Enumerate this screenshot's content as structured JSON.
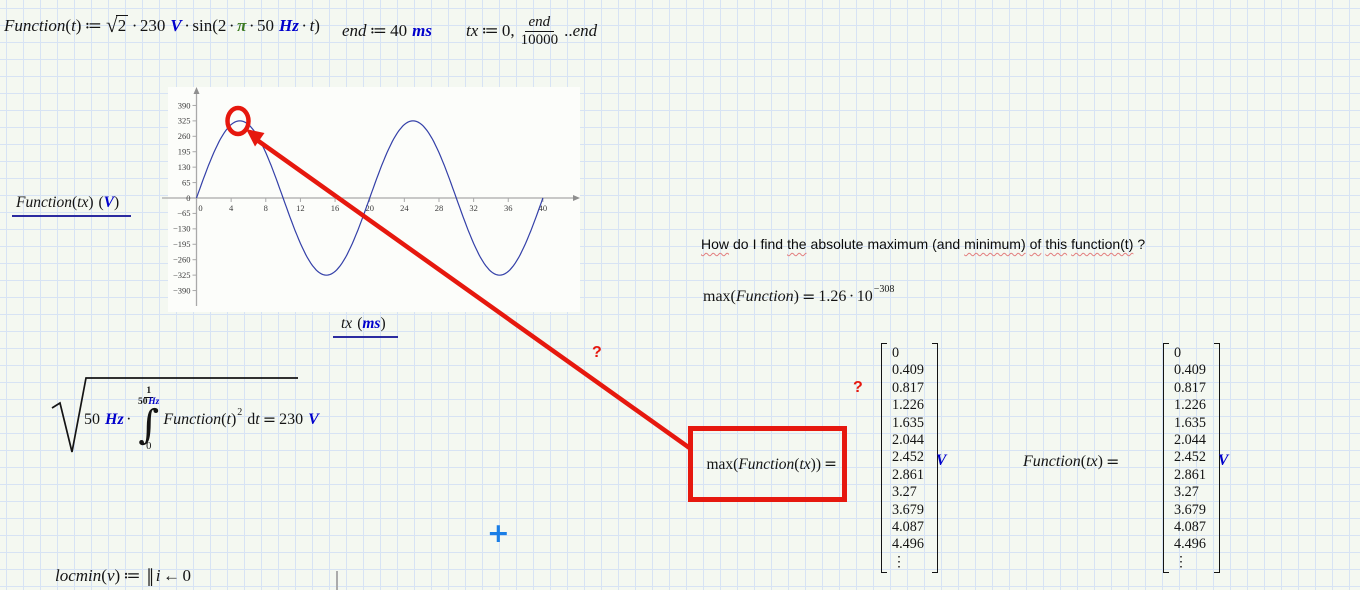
{
  "colors": {
    "unit": "#0000cc",
    "pi": "#3c7a22",
    "red": "#e6180e",
    "label_underline": "#2b2ba0",
    "curve": "#3440a8",
    "axis": "#a9a9a9",
    "crosshair": "#1a7ee6"
  },
  "sym": {
    "assign": "≔",
    "dot": "·",
    "open": "(",
    "close": ")",
    "eq": "=",
    "sqrt": "√",
    "comma": ",",
    "range_dots": "..",
    "d": "d",
    "arrow": "←",
    "dbar": "‖",
    "vdots": "⋮"
  },
  "equations": {
    "definition": {
      "name": "Function",
      "arg": "t",
      "sqrt_of": "2",
      "coef": "230",
      "unit": "V",
      "func": "sin",
      "two": "2",
      "pi": "π",
      "freq": "50",
      "freq_unit": "Hz",
      "var": "t"
    },
    "end_def": {
      "name": "end",
      "value": "40",
      "unit": "ms"
    },
    "range_def": {
      "name": "tx",
      "start": "0",
      "num": "end",
      "den": "10000",
      "end": "end"
    },
    "rms": {
      "coef": "50",
      "coef_unit": "Hz",
      "lim_num": "1",
      "lim_den": "50",
      "lim_den_unit": "Hz",
      "lower": "0",
      "fn": "Function",
      "arg": "t",
      "power": "2",
      "dvar": "t",
      "value": "230",
      "unit": "V"
    },
    "max_scalar": {
      "op": "max",
      "arg": "Function",
      "mantissa": "1.26",
      "base": "10",
      "exponent": "−308"
    },
    "max_vector": {
      "op": "max",
      "fn": "Function",
      "arg": "tx"
    },
    "vector_eval": {
      "fn": "Function",
      "arg": "tx"
    },
    "locmin": {
      "name": "locmin",
      "arg": "v",
      "var": "i",
      "value": "0"
    }
  },
  "question": {
    "words": [
      {
        "w": "How",
        "u": "sq"
      },
      {
        "w": "do",
        "u": ""
      },
      {
        "w": "I",
        "u": ""
      },
      {
        "w": "find",
        "u": ""
      },
      {
        "w": "the",
        "u": "sq"
      },
      {
        "w": "absolute",
        "u": ""
      },
      {
        "w": "maximum",
        "u": ""
      },
      {
        "w": "(and",
        "u": ""
      },
      {
        "w": "minimum)",
        "u": "sq"
      },
      {
        "w": "of",
        "u": "sq"
      },
      {
        "w": "this",
        "u": "sq"
      },
      {
        "w": "function(t)",
        "u": "sq"
      },
      {
        "w": "?",
        "u": ""
      }
    ]
  },
  "results": {
    "vector_values": [
      "0",
      "0.409",
      "0.817",
      "1.226",
      "1.635",
      "2.044",
      "2.452",
      "2.861",
      "3.27",
      "3.679",
      "4.087",
      "4.496",
      "⋮"
    ],
    "unit": "V"
  },
  "labels": {
    "y_axis": {
      "fn": "Function",
      "arg": "tx",
      "unit": "V"
    },
    "x_axis": {
      "var": "tx",
      "unit": "ms"
    }
  },
  "annotations": {
    "q1": "?",
    "q2": "?",
    "plus": "+"
  },
  "chart_data": {
    "type": "line",
    "title": "",
    "xlabel": "tx (ms)",
    "ylabel": "Function(tx) (V)",
    "x_ticks": [
      0,
      4,
      8,
      12,
      16,
      20,
      24,
      28,
      32,
      36,
      40
    ],
    "y_ticks": [
      390,
      325,
      260,
      195,
      130,
      65,
      0,
      -65,
      -130,
      -195,
      -260,
      -325,
      -390
    ],
    "xlim": [
      0,
      40
    ],
    "ylim": [
      -420,
      420
    ],
    "grid": false,
    "series": [
      {
        "name": "Function(tx)",
        "formula": "sqrt(2)*230*sin(2*pi*50Hz*t)",
        "amplitude_V": 325.27,
        "frequency_Hz": 50,
        "period_ms": 20
      }
    ],
    "key_points": {
      "first_peak": {
        "x_ms": 5,
        "y_V": 325.27
      }
    }
  }
}
